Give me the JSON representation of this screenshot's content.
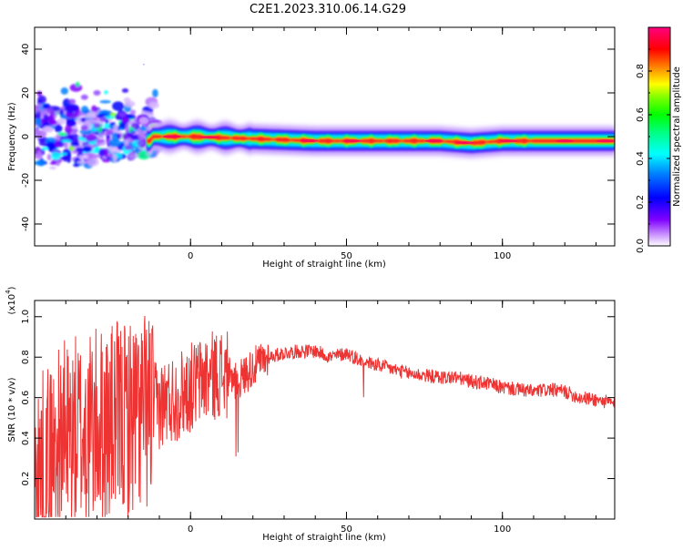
{
  "title": "C2E1.2023.310.06.14.G29",
  "chart_data": [
    {
      "type": "heatmap",
      "xlabel": "Height of straight line (km)",
      "ylabel": "Frequency (Hz)",
      "xlim": [
        -50,
        136
      ],
      "ylim": [
        -50,
        50
      ],
      "x_ticks": [
        0,
        50,
        100
      ],
      "y_ticks": [
        -40,
        -20,
        0,
        20,
        40
      ],
      "x_tick_labels": [
        "0",
        "50",
        "100"
      ],
      "y_tick_labels": [
        "-40",
        "-20",
        "0",
        "20",
        "40"
      ],
      "dominant_frequency_track": {
        "x": [
          -12,
          0,
          20,
          40,
          60,
          80,
          90,
          100,
          120,
          136
        ],
        "y": [
          0,
          0,
          -1,
          -2,
          -2,
          -2,
          -3,
          -2,
          -2,
          -2
        ]
      },
      "colorbar": {
        "label": "Normalized spectral amplitude",
        "range": [
          0,
          1
        ],
        "ticks": [
          0.0,
          0.2,
          0.4,
          0.6,
          0.8
        ],
        "tick_labels": [
          "0.0",
          "0.2",
          "0.4",
          "0.6",
          "0.8"
        ],
        "colors": [
          "#ffffff",
          "#7f00ff",
          "#0000ff",
          "#00ffff",
          "#00ff00",
          "#ffff00",
          "#ff8000",
          "#ff0000",
          "#ff0080"
        ]
      }
    },
    {
      "type": "line",
      "xlabel": "Height of straight line (km)",
      "ylabel": "SNR (10 * v/v)",
      "y_multiplier_label": "(x10",
      "y_multiplier_exp": "4",
      "y_multiplier_close": ")",
      "xlim": [
        -50,
        136
      ],
      "ylim": [
        0,
        1.08
      ],
      "x_ticks": [
        0,
        50,
        100
      ],
      "y_ticks": [
        0.2,
        0.4,
        0.6,
        0.8,
        1.0
      ],
      "x_tick_labels": [
        "0",
        "50",
        "100"
      ],
      "y_tick_labels": [
        "0.2",
        "0.4",
        "0.6",
        "0.8",
        "1.0"
      ],
      "series": [
        {
          "color": "#ee3333",
          "x": [
            -50,
            -40,
            -30,
            -20,
            -12,
            -5,
            0,
            5,
            10,
            15,
            20,
            25,
            30,
            35,
            40,
            45,
            50,
            55,
            60,
            65,
            70,
            75,
            80,
            85,
            90,
            95,
            100,
            105,
            110,
            115,
            120,
            125,
            130,
            136
          ],
          "y": [
            0.2,
            0.4,
            0.45,
            0.5,
            0.55,
            0.6,
            0.65,
            0.7,
            0.72,
            0.68,
            0.75,
            0.8,
            0.82,
            0.83,
            0.83,
            0.8,
            0.82,
            0.78,
            0.76,
            0.74,
            0.72,
            0.71,
            0.7,
            0.7,
            0.68,
            0.67,
            0.65,
            0.64,
            0.63,
            0.64,
            0.63,
            0.6,
            0.59,
            0.57
          ]
        }
      ]
    }
  ]
}
